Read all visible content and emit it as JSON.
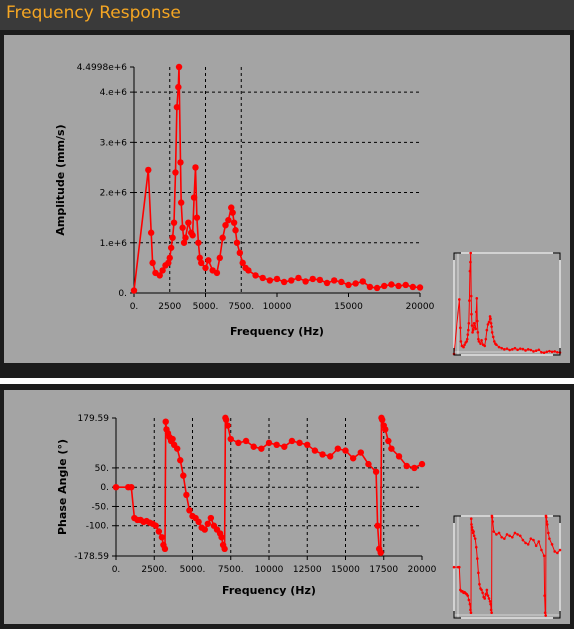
{
  "window": {
    "title": "Frequency Response"
  },
  "chart_data": [
    {
      "type": "line",
      "ylabel": "Amplitude (mm/s)",
      "xlabel": "Frequency (Hz)",
      "xlim": [
        0,
        20000
      ],
      "ylim": [
        0,
        4499800
      ],
      "x_ticks": [
        0,
        5000,
        10000,
        15000,
        20000
      ],
      "x_tick_labels": [
        "0.",
        "2500",
        "5000.",
        "7500.",
        "10000",
        "15000",
        "20000"
      ],
      "x_tick_label_values": [
        0,
        2500,
        5000,
        7500,
        10000,
        15000,
        20000
      ],
      "y_ticks": [
        0,
        1000000,
        2000000,
        3000000,
        4000000,
        4499800
      ],
      "y_tick_labels": [
        "0.",
        "1.e+6",
        "2.e+6",
        "3.e+6",
        "4.e+6",
        "4.4998e+6"
      ],
      "x_grid": [
        2500,
        5000,
        7500
      ],
      "y_grid": [
        1000000,
        2000000,
        3000000,
        4000000
      ],
      "series": [
        {
          "color": "#ff0000",
          "x": [
            0,
            1000,
            1200,
            1300,
            1500,
            1800,
            2000,
            2200,
            2400,
            2500,
            2600,
            2700,
            2800,
            2900,
            3000,
            3100,
            3150,
            3250,
            3300,
            3400,
            3500,
            3600,
            3800,
            4000,
            4100,
            4200,
            4300,
            4400,
            4500,
            4600,
            4700,
            5000,
            5200,
            5500,
            5800,
            6000,
            6200,
            6400,
            6600,
            6800,
            6900,
            7000,
            7100,
            7200,
            7400,
            7600,
            7800,
            8000,
            8500,
            9000,
            9500,
            10000,
            10500,
            11000,
            11500,
            12000,
            12500,
            13000,
            13500,
            14000,
            14500,
            15000,
            15500,
            16000,
            16500,
            17000,
            17500,
            18000,
            18500,
            19000,
            19500,
            20000
          ],
          "y": [
            50000,
            2450000,
            1200000,
            600000,
            400000,
            350000,
            450000,
            550000,
            600000,
            700000,
            900000,
            1100000,
            1400000,
            2400000,
            3700000,
            4100000,
            4499800,
            2600000,
            1800000,
            1300000,
            1000000,
            1100000,
            1400000,
            1200000,
            1150000,
            1900000,
            2500000,
            1500000,
            1000000,
            700000,
            600000,
            500000,
            650000,
            450000,
            400000,
            700000,
            1100000,
            1350000,
            1450000,
            1700000,
            1600000,
            1400000,
            1250000,
            1000000,
            800000,
            600000,
            500000,
            450000,
            350000,
            300000,
            250000,
            280000,
            220000,
            250000,
            300000,
            230000,
            280000,
            260000,
            200000,
            250000,
            220000,
            160000,
            190000,
            230000,
            120000,
            100000,
            140000,
            170000,
            140000,
            160000,
            120000,
            110000
          ]
        }
      ]
    },
    {
      "type": "line",
      "ylabel": "Phase Angle (°)",
      "xlabel": "Frequency (Hz)",
      "xlim": [
        0,
        20000
      ],
      "ylim": [
        -178.59,
        179.59
      ],
      "x_ticks": [
        0,
        2500,
        5000,
        7500,
        10000,
        12500,
        15000,
        17500,
        20000
      ],
      "x_tick_labels": [
        "0.",
        "2500.",
        "5000.",
        "7500.",
        "10000",
        "12500",
        "15000",
        "17500",
        "20000"
      ],
      "y_ticks": [
        -178.59,
        -100,
        -50,
        0,
        50,
        179.59
      ],
      "y_tick_labels": [
        "-178.59",
        "-100.",
        "-50.",
        "0.",
        "50.",
        "179.59"
      ],
      "x_grid": [
        2500,
        5000,
        7500,
        10000,
        12500,
        15000,
        17500
      ],
      "y_grid": [
        -100,
        -50,
        0,
        50
      ],
      "series": [
        {
          "color": "#ff0000",
          "x": [
            0,
            800,
            1000,
            1200,
            1400,
            1600,
            1800,
            2000,
            2200,
            2400,
            2600,
            2800,
            3000,
            3100,
            3200,
            3250,
            3300,
            3400,
            3500,
            3600,
            3700,
            3800,
            4000,
            4200,
            4400,
            4600,
            4800,
            5000,
            5200,
            5400,
            5600,
            5800,
            6000,
            6200,
            6400,
            6600,
            6800,
            6900,
            7000,
            7100,
            7150,
            7200,
            7300,
            7500,
            8000,
            8500,
            9000,
            9500,
            10000,
            10500,
            11000,
            11500,
            12000,
            12500,
            13000,
            13500,
            14000,
            14500,
            15000,
            15500,
            16000,
            16500,
            17000,
            17100,
            17200,
            17300,
            17350,
            17400,
            17500,
            17600,
            17800,
            18000,
            18500,
            19000,
            19500,
            20000
          ],
          "y": [
            0,
            0,
            0,
            -80,
            -85,
            -85,
            -90,
            -88,
            -92,
            -95,
            -100,
            -115,
            -130,
            -150,
            -160,
            170,
            150,
            140,
            130,
            120,
            125,
            110,
            100,
            70,
            30,
            -20,
            -60,
            -75,
            -80,
            -90,
            -105,
            -110,
            -95,
            -80,
            -100,
            -110,
            -120,
            -130,
            -150,
            -160,
            180,
            175,
            160,
            125,
            115,
            120,
            105,
            100,
            115,
            110,
            105,
            120,
            115,
            110,
            95,
            85,
            80,
            100,
            95,
            75,
            90,
            60,
            40,
            -100,
            -160,
            -170,
            180,
            175,
            160,
            150,
            120,
            100,
            80,
            55,
            50,
            60
          ]
        }
      ]
    }
  ]
}
